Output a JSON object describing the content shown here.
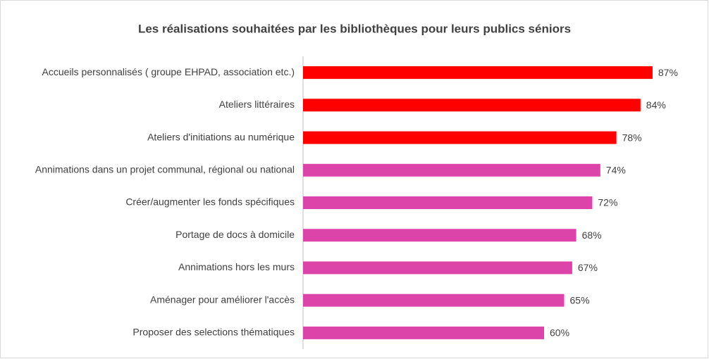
{
  "chart_data": {
    "type": "barh",
    "title": "Les réalisations souhaitées par les bibliothèques pour leurs publics séniors",
    "categories": [
      "Accueils personnalisés ( groupe EHPAD, association etc.)",
      "Ateliers littéraires",
      "Ateliers d'initiations au numérique",
      "Annimations dans un projet communal, régional ou national",
      "Créer/augmenter les fonds spécifiques",
      "Portage de docs à domicile",
      "Annimations hors les murs",
      "Aménager pour améliorer l'accès",
      "Proposer des selections thématiques"
    ],
    "values": [
      87,
      84,
      78,
      74,
      72,
      68,
      67,
      65,
      60
    ],
    "value_labels": [
      "87%",
      "84%",
      "78%",
      "74%",
      "72%",
      "68%",
      "67%",
      "65%",
      "60%"
    ],
    "colors": [
      "#ff0000",
      "#ff0000",
      "#ff0000",
      "#dd44aa",
      "#dd44aa",
      "#dd44aa",
      "#dd44aa",
      "#dd44aa",
      "#dd44aa"
    ],
    "xlim": [
      0,
      100
    ]
  }
}
